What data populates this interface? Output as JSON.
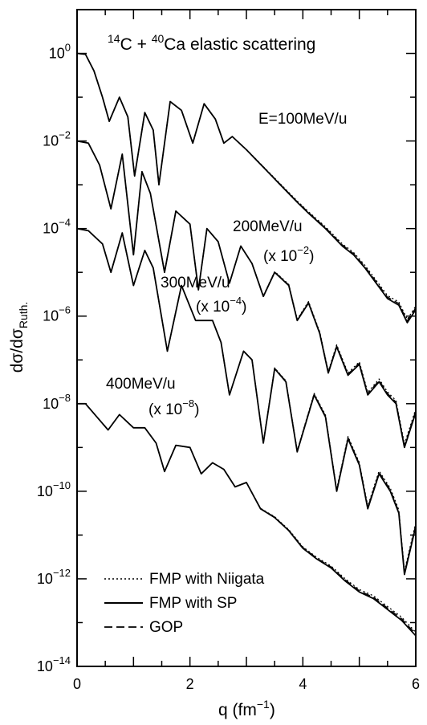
{
  "chart_data": {
    "type": "line",
    "title": "14C + 40Ca elastic scattering",
    "title_parts": {
      "pre": "14",
      "a": "C + ",
      "b": "40",
      "c": "Ca elastic scattering"
    },
    "xlabel": "q (fm-1)",
    "xlabel_parts": {
      "base": "q (fm",
      "sup": "−1",
      "close": ")"
    },
    "ylabel": "dσ/dσRuth.",
    "ylabel_parts": {
      "base": "dσ/dσ",
      "sub": "Ruth."
    },
    "xlim": [
      0,
      6
    ],
    "ylim_log10": [
      -14,
      1
    ],
    "y_scale": "log",
    "grid": false,
    "legend_placement": "bottom-left",
    "x_ticks": [
      {
        "value": 0,
        "label": "0"
      },
      {
        "value": 2,
        "label": "2"
      },
      {
        "value": 4,
        "label": "4"
      },
      {
        "value": 6,
        "label": "6"
      }
    ],
    "y_ticks": [
      {
        "exp": 0,
        "base": "10",
        "sup": "0"
      },
      {
        "exp": -2,
        "base": "10",
        "sup": "−2"
      },
      {
        "exp": -4,
        "base": "10",
        "sup": "−4"
      },
      {
        "exp": -6,
        "base": "10",
        "sup": "−6"
      },
      {
        "exp": -8,
        "base": "10",
        "sup": "−8"
      },
      {
        "exp": -10,
        "base": "10",
        "sup": "−10"
      },
      {
        "exp": -12,
        "base": "10",
        "sup": "−12"
      },
      {
        "exp": -14,
        "base": "10",
        "sup": "−14"
      }
    ],
    "legend": [
      {
        "label": "FMP with Niigata",
        "style": "dotted"
      },
      {
        "label": "FMP with SP",
        "style": "solid"
      },
      {
        "label": "GOP",
        "style": "dashed"
      }
    ],
    "annotations": [
      {
        "id": "e100",
        "text": "E=100MeV/u"
      },
      {
        "id": "e200",
        "text": "200MeV/u"
      },
      {
        "id": "s200",
        "base": "(x 10",
        "sup": "−2",
        "close": ")"
      },
      {
        "id": "e300",
        "text": "300MeV/u"
      },
      {
        "id": "s300",
        "base": "(x 10",
        "sup": "−4",
        "close": ")"
      },
      {
        "id": "e400",
        "text": "400MeV/u"
      },
      {
        "id": "s400",
        "base": "(x 10",
        "sup": "−8",
        "close": ")"
      }
    ],
    "series": [
      {
        "energy": "100MeV/u",
        "x": [
          0,
          0.15,
          0.3,
          0.45,
          0.57,
          0.75,
          0.9,
          1.02,
          1.2,
          1.35,
          1.45,
          1.65,
          1.85,
          2.05,
          2.25,
          2.45,
          2.6,
          2.75,
          3.0,
          3.3,
          3.6,
          3.9,
          4.1,
          4.4,
          4.7,
          4.9,
          5.1,
          5.3,
          5.5,
          5.7,
          5.85,
          6.0
        ],
        "log10_y": [
          0.0,
          -0.02,
          -0.4,
          -1.0,
          -1.55,
          -1.0,
          -1.45,
          -2.8,
          -1.35,
          -1.75,
          -3.0,
          -1.1,
          -1.3,
          -2.05,
          -1.15,
          -1.5,
          -2.05,
          -1.9,
          -2.2,
          -2.6,
          -3.0,
          -3.4,
          -3.65,
          -4.0,
          -4.4,
          -4.6,
          -4.9,
          -5.25,
          -5.6,
          -5.75,
          -6.15,
          -5.85
        ]
      },
      {
        "energy": "200MeV/u",
        "x": [
          0,
          0.2,
          0.4,
          0.6,
          0.8,
          1.0,
          1.15,
          1.3,
          1.55,
          1.75,
          2.0,
          2.15,
          2.3,
          2.5,
          2.7,
          2.9,
          3.1,
          3.3,
          3.5,
          3.75,
          3.9,
          4.1,
          4.3,
          4.45,
          4.6,
          4.8,
          5.0,
          5.15,
          5.35,
          5.5,
          5.65,
          5.8,
          6.0
        ],
        "log10_y": [
          -2.0,
          -2.05,
          -2.55,
          -3.55,
          -2.3,
          -4.6,
          -2.7,
          -3.2,
          -5.0,
          -3.6,
          -3.9,
          -5.4,
          -4.0,
          -4.3,
          -5.25,
          -4.4,
          -4.8,
          -5.55,
          -5.0,
          -5.3,
          -6.1,
          -5.7,
          -6.4,
          -7.3,
          -6.7,
          -7.35,
          -7.1,
          -7.8,
          -7.5,
          -7.8,
          -8.0,
          -9.0,
          -8.2
        ]
      },
      {
        "energy": "300MeV/u",
        "x": [
          0,
          0.2,
          0.45,
          0.6,
          0.8,
          1.0,
          1.2,
          1.35,
          1.6,
          1.85,
          2.1,
          2.4,
          2.55,
          2.7,
          2.95,
          3.1,
          3.3,
          3.5,
          3.7,
          3.9,
          4.2,
          4.4,
          4.6,
          4.8,
          5.0,
          5.15,
          5.35,
          5.55,
          5.7,
          5.8,
          6.0
        ],
        "log10_y": [
          -4.0,
          -4.05,
          -4.35,
          -5.0,
          -4.1,
          -5.3,
          -4.5,
          -4.9,
          -6.8,
          -5.3,
          -6.1,
          -6.1,
          -6.6,
          -7.8,
          -6.8,
          -7.0,
          -8.9,
          -7.2,
          -7.5,
          -9.1,
          -7.8,
          -8.3,
          -10.0,
          -8.8,
          -9.4,
          -10.4,
          -9.6,
          -10.0,
          -10.5,
          -11.9,
          -10.8
        ]
      },
      {
        "energy": "400MeV/u",
        "x": [
          0,
          0.15,
          0.35,
          0.55,
          0.75,
          1.0,
          1.2,
          1.4,
          1.55,
          1.75,
          2.0,
          2.2,
          2.4,
          2.6,
          2.8,
          3.0,
          3.25,
          3.5,
          3.75,
          4.0,
          4.25,
          4.5,
          4.75,
          5.0,
          5.25,
          5.5,
          5.75,
          6.0
        ],
        "log10_y": [
          -8.0,
          -8.0,
          -8.3,
          -8.6,
          -8.25,
          -8.55,
          -8.55,
          -8.9,
          -9.55,
          -8.95,
          -9.0,
          -9.6,
          -9.35,
          -9.5,
          -9.9,
          -9.8,
          -10.4,
          -10.6,
          -10.9,
          -11.3,
          -11.55,
          -11.75,
          -12.05,
          -12.3,
          -12.45,
          -12.7,
          -12.95,
          -13.3
        ]
      }
    ]
  }
}
